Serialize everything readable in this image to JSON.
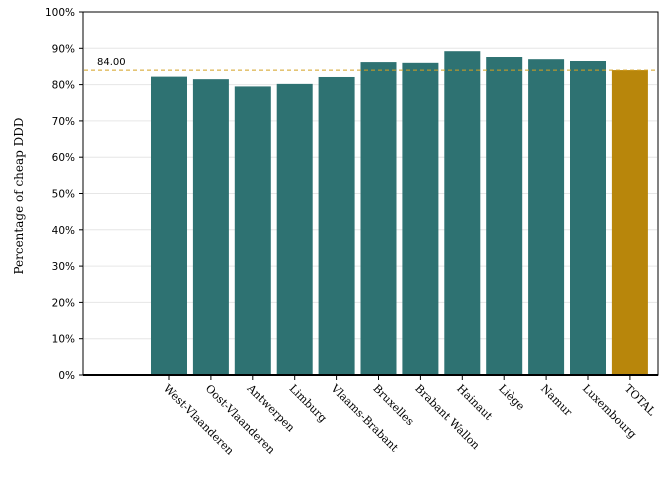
{
  "chart_data": {
    "type": "bar",
    "title": "",
    "xlabel": "",
    "ylabel": "Percentage of cheap DDD",
    "ylim": [
      0,
      100
    ],
    "yticks": [
      "0%",
      "10%",
      "20%",
      "30%",
      "40%",
      "50%",
      "60%",
      "70%",
      "80%",
      "90%",
      "100%"
    ],
    "grid": true,
    "categories": [
      "West-Vlaanderen",
      "Oost-Vlaanderen",
      "Antwerpen",
      "Limburg",
      "Vlaams-Brabant",
      "Bruxelles",
      "Brabant Wallon",
      "Hainaut",
      "Liège",
      "Namur",
      "Luxembourg",
      "TOTAL"
    ],
    "values": [
      82.2,
      81.5,
      79.5,
      80.2,
      82.1,
      86.2,
      86.0,
      89.2,
      87.6,
      87.0,
      86.5,
      84.0
    ],
    "bar_colors": [
      "#2e7272",
      "#2e7272",
      "#2e7272",
      "#2e7272",
      "#2e7272",
      "#2e7272",
      "#2e7272",
      "#2e7272",
      "#2e7272",
      "#2e7272",
      "#2e7272",
      "#b8860b"
    ],
    "reference_line": {
      "value": 84.0,
      "label": "84.00",
      "color": "#d4a020"
    }
  }
}
